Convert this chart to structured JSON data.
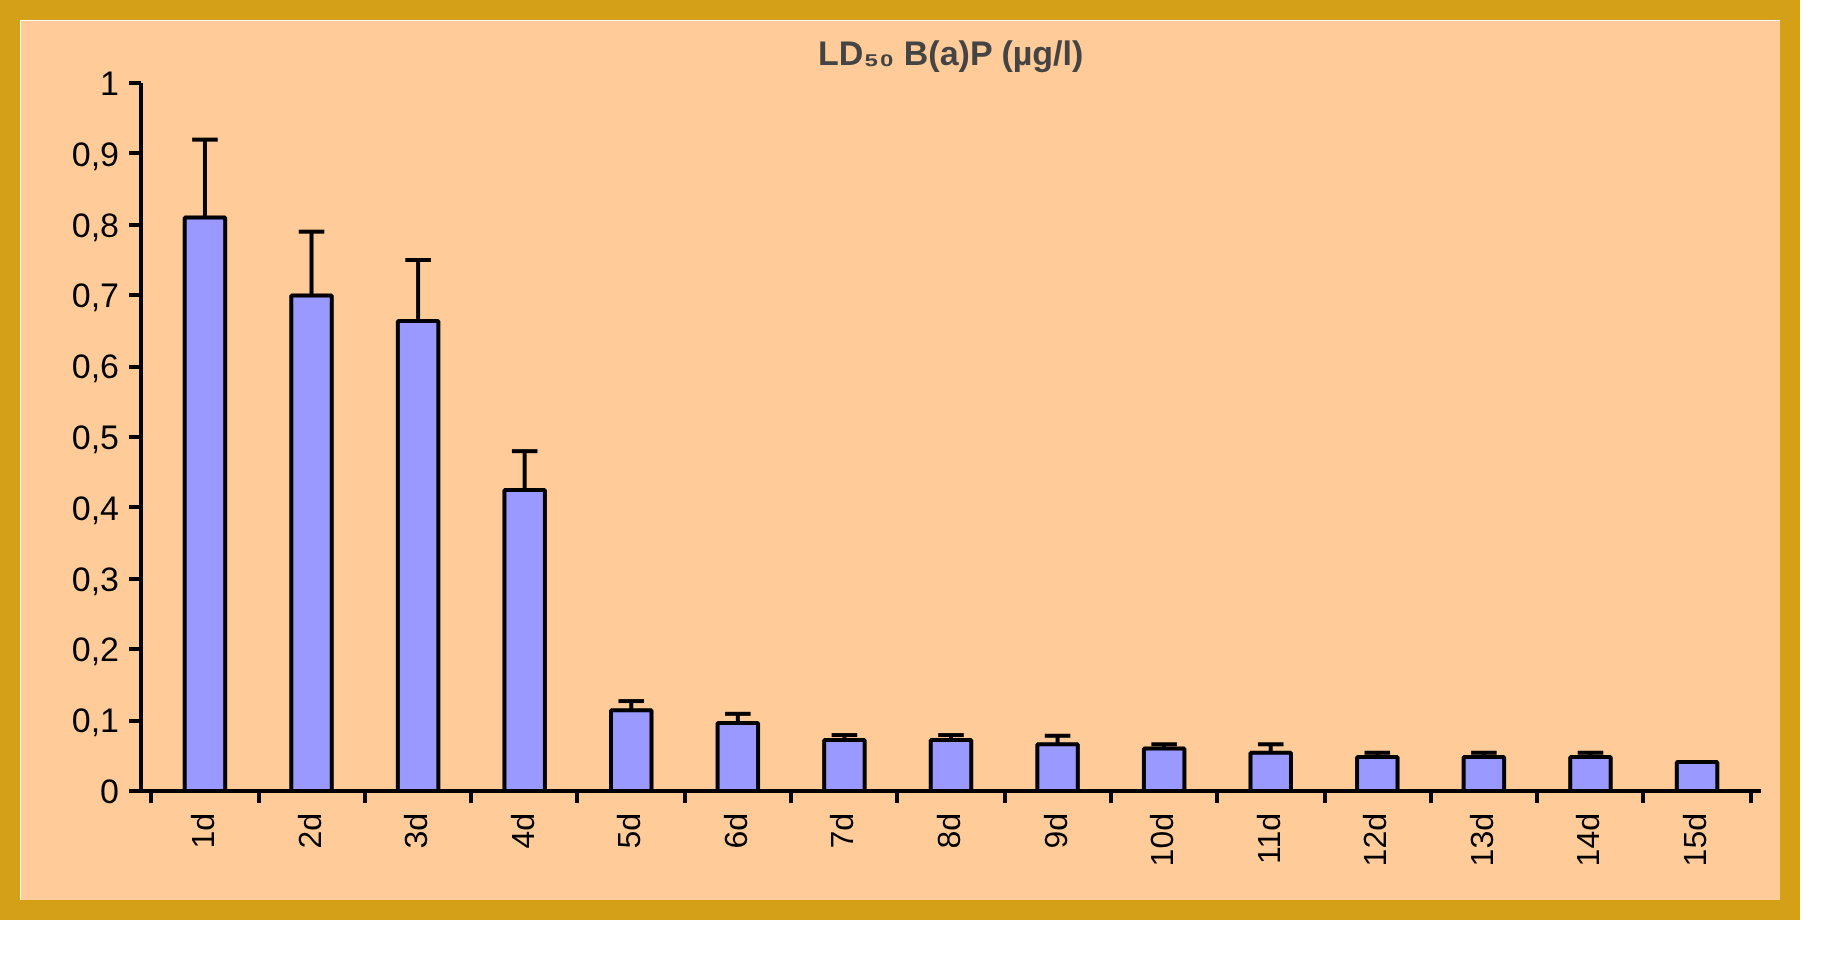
{
  "chart_data": {
    "type": "bar",
    "title": "LD₅₀ B(a)P (µg/l)",
    "categories": [
      "1d",
      "2d",
      "3d",
      "4d",
      "5d",
      "6d",
      "7d",
      "8d",
      "9d",
      "10d",
      "11d",
      "12d",
      "13d",
      "14d",
      "15d"
    ],
    "values": [
      0.81,
      0.7,
      0.664,
      0.425,
      0.114,
      0.096,
      0.072,
      0.072,
      0.066,
      0.06,
      0.054,
      0.048,
      0.048,
      0.048,
      0.041
    ],
    "errors": [
      [
        0.81,
        0.92
      ],
      [
        0.7,
        0.79
      ],
      [
        0.664,
        0.75
      ],
      [
        0.425,
        0.48
      ],
      [
        0.114,
        0.127
      ],
      [
        0.096,
        0.109
      ],
      [
        0.072,
        0.079
      ],
      [
        0.072,
        0.079
      ],
      [
        0.066,
        0.078
      ],
      [
        0.06,
        0.066
      ],
      [
        0.054,
        0.066
      ],
      [
        0.048,
        0.054
      ],
      [
        0.048,
        0.054
      ],
      [
        0.048,
        0.054
      ],
      null
    ],
    "color": "#9999ff",
    "ylim": [
      0,
      1
    ],
    "yticks": [
      0,
      {
        "value": 0.1,
        "label": "0,1"
      },
      {
        "value": 0.2,
        "label": "0,2"
      },
      {
        "value": 0.3,
        "label": "0,3"
      },
      {
        "value": 0.4,
        "label": "0,4"
      },
      {
        "value": 0.5,
        "label": "0,5"
      },
      {
        "value": 0.6,
        "label": "0,6"
      },
      {
        "value": 0.7,
        "label": "0,7"
      },
      {
        "value": 0.8,
        "label": "0,8"
      },
      {
        "value": 0.9,
        "label": "0,9"
      },
      1
    ],
    "grid": false
  }
}
